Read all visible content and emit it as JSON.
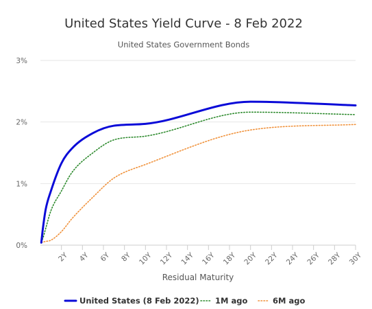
{
  "chart_data": {
    "type": "line",
    "title": "United States Yield Curve - 8 Feb 2022",
    "subtitle": "United States Government Bonds",
    "xlabel": "Residual Maturity",
    "ylabel": "",
    "xlim": [
      0,
      30
    ],
    "ylim": [
      0,
      3
    ],
    "x_ticks": [
      2,
      4,
      6,
      8,
      10,
      12,
      14,
      16,
      18,
      20,
      22,
      24,
      26,
      28,
      30
    ],
    "x_tick_labels": [
      "2Y",
      "4Y",
      "6Y",
      "8Y",
      "10Y",
      "12Y",
      "14Y",
      "16Y",
      "18Y",
      "20Y",
      "22Y",
      "24Y",
      "26Y",
      "28Y",
      "30Y"
    ],
    "y_ticks": [
      0,
      1,
      2,
      3
    ],
    "y_tick_labels": [
      "0%",
      "1%",
      "2%",
      "3%"
    ],
    "grid": {
      "horizontal": true,
      "vertical": false
    },
    "legend_position": "bottom",
    "x": [
      0.083,
      0.25,
      0.5,
      1,
      2,
      3,
      5,
      7,
      10,
      20,
      30
    ],
    "series": [
      {
        "name": "United States (8 Feb 2022)",
        "color": "#0a0ad8",
        "style": "solid",
        "values": [
          0.04,
          0.29,
          0.58,
          0.88,
          1.33,
          1.57,
          1.82,
          1.94,
          1.97,
          2.33,
          2.27
        ]
      },
      {
        "name": "1M ago",
        "color": "#2d8a2d",
        "style": "dotted",
        "values": [
          0.05,
          0.12,
          0.27,
          0.56,
          0.88,
          1.18,
          1.5,
          1.71,
          1.77,
          2.16,
          2.12
        ]
      },
      {
        "name": "6M ago",
        "color": "#f0913a",
        "style": "dotted",
        "values": [
          0.04,
          0.05,
          0.06,
          0.08,
          0.22,
          0.43,
          0.78,
          1.09,
          1.31,
          1.87,
          1.96
        ]
      }
    ]
  }
}
